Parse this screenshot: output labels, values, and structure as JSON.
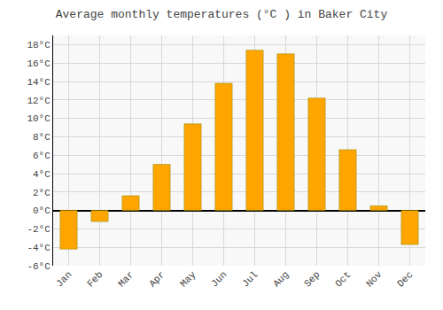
{
  "chart_data": {
    "type": "bar",
    "title": "Average monthly temperatures (°C ) in Baker City",
    "categories": [
      "Jan",
      "Feb",
      "Mar",
      "Apr",
      "May",
      "Jun",
      "Jul",
      "Aug",
      "Sep",
      "Oct",
      "Nov",
      "Dec"
    ],
    "values": [
      -4.2,
      -1.2,
      1.6,
      5.0,
      9.4,
      13.8,
      17.4,
      17.0,
      12.2,
      6.6,
      0.5,
      -3.7
    ],
    "color": "#FFA500",
    "ylim": [
      -6,
      19
    ],
    "yticks": [
      {
        "value": -6,
        "label": "-6°C"
      },
      {
        "value": -4,
        "label": "-4°C"
      },
      {
        "value": -2,
        "label": "-2°C"
      },
      {
        "value": 0,
        "label": "0°C"
      },
      {
        "value": 2,
        "label": "2°C"
      },
      {
        "value": 4,
        "label": "4°C"
      },
      {
        "value": 6,
        "label": "6°C"
      },
      {
        "value": 8,
        "label": "8°C"
      },
      {
        "value": 10,
        "label": "10°C"
      },
      {
        "value": 12,
        "label": "12°C"
      },
      {
        "value": 14,
        "label": "14°C"
      },
      {
        "value": 16,
        "label": "16°C"
      },
      {
        "value": 18,
        "label": "18°C"
      }
    ],
    "grid": true
  }
}
